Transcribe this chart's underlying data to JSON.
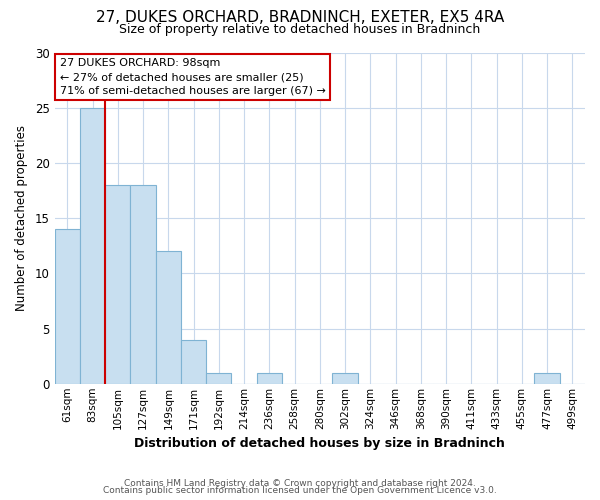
{
  "title": "27, DUKES ORCHARD, BRADNINCH, EXETER, EX5 4RA",
  "subtitle": "Size of property relative to detached houses in Bradninch",
  "xlabel": "Distribution of detached houses by size in Bradninch",
  "ylabel": "Number of detached properties",
  "bar_labels": [
    "61sqm",
    "83sqm",
    "105sqm",
    "127sqm",
    "149sqm",
    "171sqm",
    "192sqm",
    "214sqm",
    "236sqm",
    "258sqm",
    "280sqm",
    "302sqm",
    "324sqm",
    "346sqm",
    "368sqm",
    "390sqm",
    "411sqm",
    "433sqm",
    "455sqm",
    "477sqm",
    "499sqm"
  ],
  "bar_values": [
    14,
    25,
    18,
    18,
    12,
    4,
    1,
    0,
    1,
    0,
    0,
    1,
    0,
    0,
    0,
    0,
    0,
    0,
    0,
    1,
    0
  ],
  "bar_color": "#c8dff0",
  "bar_edge_color": "#7fb3d3",
  "property_line_label": "27 DUKES ORCHARD: 98sqm",
  "annotation_line1": "← 27% of detached houses are smaller (25)",
  "annotation_line2": "71% of semi-detached houses are larger (67) →",
  "ylim": [
    0,
    30
  ],
  "yticks": [
    0,
    5,
    10,
    15,
    20,
    25,
    30
  ],
  "footer_line1": "Contains HM Land Registry data © Crown copyright and database right 2024.",
  "footer_line2": "Contains public sector information licensed under the Open Government Licence v3.0.",
  "background_color": "#ffffff",
  "grid_color": "#c8d8ec",
  "annotation_box_color": "#ffffff",
  "annotation_box_edge": "#cc0000",
  "property_line_color": "#cc0000",
  "property_line_x": 1.5
}
